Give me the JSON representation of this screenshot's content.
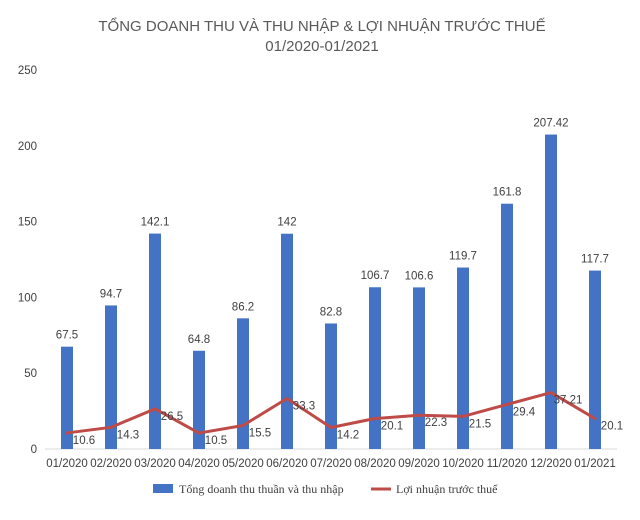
{
  "chart_data": {
    "type": "bar",
    "title": "TỔNG DOANH THU VÀ THU NHẬP & LỢI NHUẬN TRƯỚC THUẾ",
    "subtitle": "01/2020-01/2021",
    "categories": [
      "01/2020",
      "02/2020",
      "03/2020",
      "04/2020",
      "05/2020",
      "06/2020",
      "07/2020",
      "08/2020",
      "09/2020",
      "10/2020",
      "11/2020",
      "12/2020",
      "01/2021"
    ],
    "ylim": [
      0,
      250
    ],
    "yticks": [
      0,
      50,
      100,
      150,
      200,
      250
    ],
    "grid": false,
    "legend_position": "bottom",
    "series": [
      {
        "name": "Tổng doanh thu thuần và thu nhập",
        "type": "bar",
        "color": "#4472C4",
        "values": [
          67.5,
          94.7,
          142.1,
          64.8,
          86.2,
          142,
          82.8,
          106.7,
          106.6,
          119.7,
          161.8,
          207.42,
          117.7
        ],
        "labels": [
          "67.5",
          "94.7",
          "142.1",
          "64.8",
          "86.2",
          "142",
          "82.8",
          "106.7",
          "106.6",
          "119.7",
          "161.8",
          "207.42",
          "117.7"
        ]
      },
      {
        "name": "Lợi nhuận trước thuế",
        "type": "line",
        "color": "#BE4B48",
        "values": [
          10.6,
          14.3,
          26.5,
          10.5,
          15.5,
          33.3,
          14.2,
          20.1,
          22.3,
          21.5,
          29.4,
          37.21,
          20.1
        ],
        "labels": [
          "10.6",
          "14.3",
          "26.5",
          "10.5",
          "15.5",
          "33.3",
          "14.2",
          "20.1",
          "22.3",
          "21.5",
          "29.4",
          "37.21",
          "20.1"
        ]
      }
    ]
  }
}
